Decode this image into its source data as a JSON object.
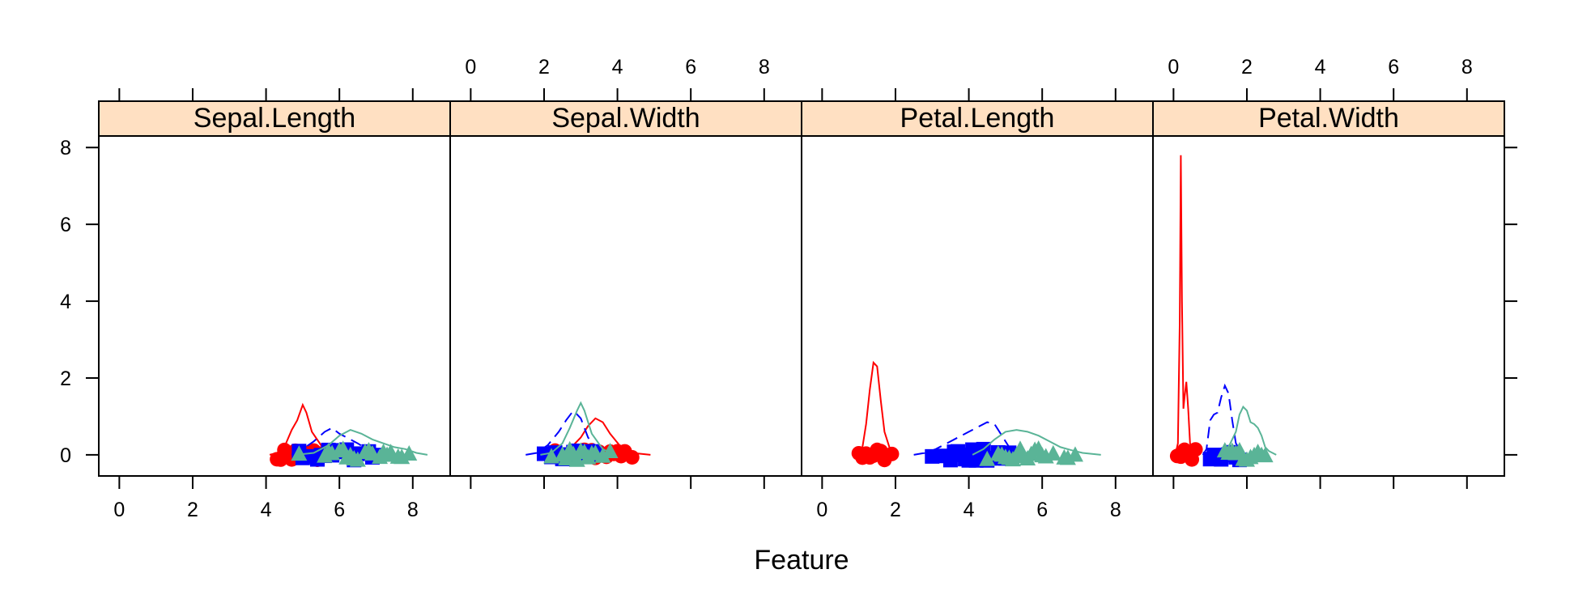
{
  "chart_data": {
    "type": "density",
    "xlabel": "Feature",
    "ylabel": "",
    "xlim": [
      -0.56,
      9.02
    ],
    "ylim": [
      -0.55,
      8.3
    ],
    "xticks": [
      0,
      2,
      4,
      6,
      8
    ],
    "yticks": [
      0,
      2,
      4,
      6,
      8
    ],
    "grid": false,
    "legend": "none",
    "panels": [
      {
        "name": "Sepal.Length",
        "series": [
          {
            "color": "#FF0000",
            "dash": false,
            "marker": "circle",
            "density": [
              [
                4.1,
                0
              ],
              [
                4.3,
                0.05
              ],
              [
                4.5,
                0.2
              ],
              [
                4.7,
                0.65
              ],
              [
                4.85,
                0.9
              ],
              [
                5.0,
                1.3
              ],
              [
                5.1,
                1.1
              ],
              [
                5.25,
                0.6
              ],
              [
                5.5,
                0.25
              ],
              [
                5.8,
                0.05
              ],
              [
                6.0,
                0
              ]
            ],
            "points": [
              4.3,
              4.4,
              4.5,
              4.6,
              4.7,
              4.8,
              4.9,
              5.0,
              5.1,
              5.2,
              5.3,
              5.4,
              5.5,
              5.7,
              5.8
            ]
          },
          {
            "color": "#0000FF",
            "dash": true,
            "marker": "square",
            "density": [
              [
                4.7,
                0
              ],
              [
                5.0,
                0.15
              ],
              [
                5.3,
                0.35
              ],
              [
                5.6,
                0.6
              ],
              [
                5.8,
                0.7
              ],
              [
                6.0,
                0.55
              ],
              [
                6.2,
                0.45
              ],
              [
                6.5,
                0.3
              ],
              [
                6.8,
                0.12
              ],
              [
                7.1,
                0.02
              ],
              [
                7.3,
                0
              ]
            ],
            "points": [
              4.9,
              5.0,
              5.2,
              5.4,
              5.5,
              5.6,
              5.7,
              5.8,
              5.9,
              6.0,
              6.1,
              6.2,
              6.3,
              6.4,
              6.6,
              6.7,
              6.8,
              6.9,
              7.0
            ]
          },
          {
            "color": "#5AB497",
            "dash": false,
            "marker": "triangle",
            "density": [
              [
                4.8,
                0
              ],
              [
                5.3,
                0.05
              ],
              [
                5.7,
                0.25
              ],
              [
                6.0,
                0.5
              ],
              [
                6.3,
                0.65
              ],
              [
                6.6,
                0.55
              ],
              [
                6.9,
                0.4
              ],
              [
                7.2,
                0.3
              ],
              [
                7.5,
                0.2
              ],
              [
                7.8,
                0.15
              ],
              [
                8.1,
                0.05
              ],
              [
                8.4,
                0
              ]
            ],
            "points": [
              4.9,
              5.6,
              5.7,
              5.8,
              6.0,
              6.1,
              6.2,
              6.3,
              6.4,
              6.5,
              6.7,
              6.8,
              6.9,
              7.1,
              7.2,
              7.3,
              7.4,
              7.6,
              7.7,
              7.9
            ]
          }
        ]
      },
      {
        "name": "Sepal.Width",
        "series": [
          {
            "color": "#FF0000",
            "dash": false,
            "marker": "circle",
            "density": [
              [
                2.1,
                0
              ],
              [
                2.5,
                0.05
              ],
              [
                2.8,
                0.25
              ],
              [
                3.0,
                0.45
              ],
              [
                3.2,
                0.75
              ],
              [
                3.4,
                0.95
              ],
              [
                3.6,
                0.85
              ],
              [
                3.8,
                0.55
              ],
              [
                4.1,
                0.2
              ],
              [
                4.4,
                0.05
              ],
              [
                4.9,
                0
              ]
            ],
            "points": [
              2.3,
              2.9,
              3.0,
              3.1,
              3.2,
              3.3,
              3.4,
              3.5,
              3.6,
              3.7,
              3.8,
              3.9,
              4.0,
              4.1,
              4.2,
              4.4
            ]
          },
          {
            "color": "#0000FF",
            "dash": true,
            "marker": "square",
            "density": [
              [
                1.5,
                0
              ],
              [
                1.8,
                0.05
              ],
              [
                2.1,
                0.25
              ],
              [
                2.4,
                0.6
              ],
              [
                2.6,
                0.9
              ],
              [
                2.8,
                1.15
              ],
              [
                3.0,
                0.95
              ],
              [
                3.2,
                0.45
              ],
              [
                3.5,
                0.1
              ],
              [
                3.8,
                0
              ]
            ],
            "points": [
              2.0,
              2.2,
              2.3,
              2.4,
              2.5,
              2.6,
              2.7,
              2.8,
              2.9,
              3.0,
              3.1,
              3.2,
              3.3,
              3.4
            ]
          },
          {
            "color": "#5AB497",
            "dash": false,
            "marker": "triangle",
            "density": [
              [
                1.9,
                0
              ],
              [
                2.2,
                0.05
              ],
              [
                2.5,
                0.3
              ],
              [
                2.7,
                0.7
              ],
              [
                2.9,
                1.15
              ],
              [
                3.0,
                1.35
              ],
              [
                3.1,
                1.15
              ],
              [
                3.3,
                0.55
              ],
              [
                3.6,
                0.15
              ],
              [
                3.9,
                0
              ]
            ],
            "points": [
              2.2,
              2.5,
              2.6,
              2.7,
              2.8,
              2.9,
              3.0,
              3.1,
              3.2,
              3.3,
              3.4,
              3.6,
              3.8
            ]
          }
        ]
      },
      {
        "name": "Petal.Length",
        "series": [
          {
            "color": "#FF0000",
            "dash": false,
            "marker": "circle",
            "density": [
              [
                0.9,
                0
              ],
              [
                1.1,
                0.2
              ],
              [
                1.2,
                0.8
              ],
              [
                1.3,
                1.7
              ],
              [
                1.4,
                2.4
              ],
              [
                1.5,
                2.3
              ],
              [
                1.6,
                1.4
              ],
              [
                1.7,
                0.6
              ],
              [
                1.85,
                0.15
              ],
              [
                2.0,
                0
              ]
            ],
            "points": [
              1.0,
              1.1,
              1.2,
              1.3,
              1.4,
              1.5,
              1.6,
              1.7,
              1.9
            ]
          },
          {
            "color": "#0000FF",
            "dash": true,
            "marker": "square",
            "density": [
              [
                2.5,
                0
              ],
              [
                2.8,
                0.05
              ],
              [
                3.1,
                0.15
              ],
              [
                3.4,
                0.3
              ],
              [
                3.7,
                0.45
              ],
              [
                4.0,
                0.6
              ],
              [
                4.2,
                0.7
              ],
              [
                4.5,
                0.85
              ],
              [
                4.7,
                0.8
              ],
              [
                4.9,
                0.5
              ],
              [
                5.1,
                0.2
              ],
              [
                5.3,
                0
              ]
            ],
            "points": [
              3.0,
              3.3,
              3.5,
              3.6,
              3.7,
              3.8,
              3.9,
              4.0,
              4.1,
              4.2,
              4.3,
              4.4,
              4.5,
              4.6,
              4.7,
              4.8,
              4.9,
              5.0,
              5.1
            ]
          },
          {
            "color": "#5AB497",
            "dash": false,
            "marker": "triangle",
            "density": [
              [
                4.1,
                0
              ],
              [
                4.4,
                0.15
              ],
              [
                4.7,
                0.4
              ],
              [
                5.0,
                0.6
              ],
              [
                5.3,
                0.65
              ],
              [
                5.6,
                0.6
              ],
              [
                5.9,
                0.5
              ],
              [
                6.2,
                0.35
              ],
              [
                6.5,
                0.2
              ],
              [
                6.8,
                0.12
              ],
              [
                7.1,
                0.05
              ],
              [
                7.6,
                0
              ]
            ],
            "points": [
              4.5,
              4.8,
              4.9,
              5.0,
              5.1,
              5.2,
              5.3,
              5.4,
              5.5,
              5.6,
              5.7,
              5.8,
              5.9,
              6.0,
              6.1,
              6.3,
              6.6,
              6.7,
              6.9
            ]
          }
        ]
      },
      {
        "name": "Petal.Width",
        "series": [
          {
            "color": "#FF0000",
            "dash": false,
            "marker": "circle",
            "density": [
              [
                0.05,
                0
              ],
              [
                0.12,
                0.3
              ],
              [
                0.17,
                3.5
              ],
              [
                0.2,
                7.8
              ],
              [
                0.23,
                4.0
              ],
              [
                0.27,
                1.2
              ],
              [
                0.3,
                1.5
              ],
              [
                0.35,
                1.9
              ],
              [
                0.4,
                1.2
              ],
              [
                0.45,
                0.3
              ],
              [
                0.55,
                0.05
              ],
              [
                0.7,
                0
              ]
            ],
            "points": [
              0.1,
              0.2,
              0.3,
              0.4,
              0.5,
              0.6
            ]
          },
          {
            "color": "#0000FF",
            "dash": true,
            "marker": "square",
            "density": [
              [
                0.8,
                0
              ],
              [
                0.9,
                0.15
              ],
              [
                1.0,
                0.9
              ],
              [
                1.1,
                1.05
              ],
              [
                1.2,
                1.1
              ],
              [
                1.3,
                1.5
              ],
              [
                1.4,
                1.8
              ],
              [
                1.5,
                1.6
              ],
              [
                1.6,
                0.9
              ],
              [
                1.7,
                0.3
              ],
              [
                1.9,
                0
              ]
            ],
            "points": [
              1.0,
              1.1,
              1.2,
              1.3,
              1.4,
              1.5,
              1.6,
              1.7,
              1.8
            ]
          },
          {
            "color": "#5AB497",
            "dash": false,
            "marker": "triangle",
            "density": [
              [
                1.3,
                0
              ],
              [
                1.5,
                0.2
              ],
              [
                1.7,
                0.6
              ],
              [
                1.8,
                1.05
              ],
              [
                1.9,
                1.25
              ],
              [
                2.0,
                1.15
              ],
              [
                2.1,
                0.85
              ],
              [
                2.2,
                0.8
              ],
              [
                2.3,
                0.7
              ],
              [
                2.4,
                0.5
              ],
              [
                2.5,
                0.2
              ],
              [
                2.6,
                0.1
              ],
              [
                2.8,
                0
              ]
            ],
            "points": [
              1.4,
              1.5,
              1.6,
              1.7,
              1.8,
              1.9,
              2.0,
              2.1,
              2.2,
              2.3,
              2.4,
              2.5
            ]
          }
        ]
      }
    ]
  }
}
